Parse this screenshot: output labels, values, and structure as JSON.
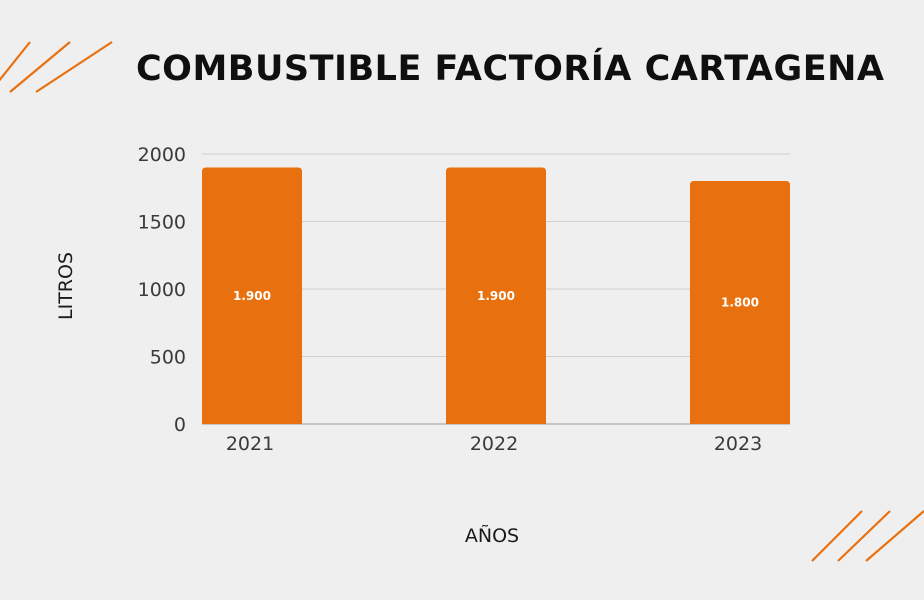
{
  "colors": {
    "background": "#efefef",
    "bar": "#e8700f",
    "accent": "#e8700f",
    "title": "#0f0f0f"
  },
  "chart_data": {
    "type": "bar",
    "title": "COMBUSTIBLE FACTORÍA CARTAGENA",
    "xlabel": "AÑOS",
    "ylabel": "LITROS",
    "categories": [
      "2021",
      "2022",
      "2023"
    ],
    "values": [
      1900,
      1900,
      1800
    ],
    "value_labels": [
      "1.900",
      "1.900",
      "1.800"
    ],
    "yticks": [
      "0",
      "500",
      "1000",
      "1500",
      "2000"
    ],
    "ylim": [
      0,
      2000
    ],
    "grid": true,
    "legend": "none"
  }
}
